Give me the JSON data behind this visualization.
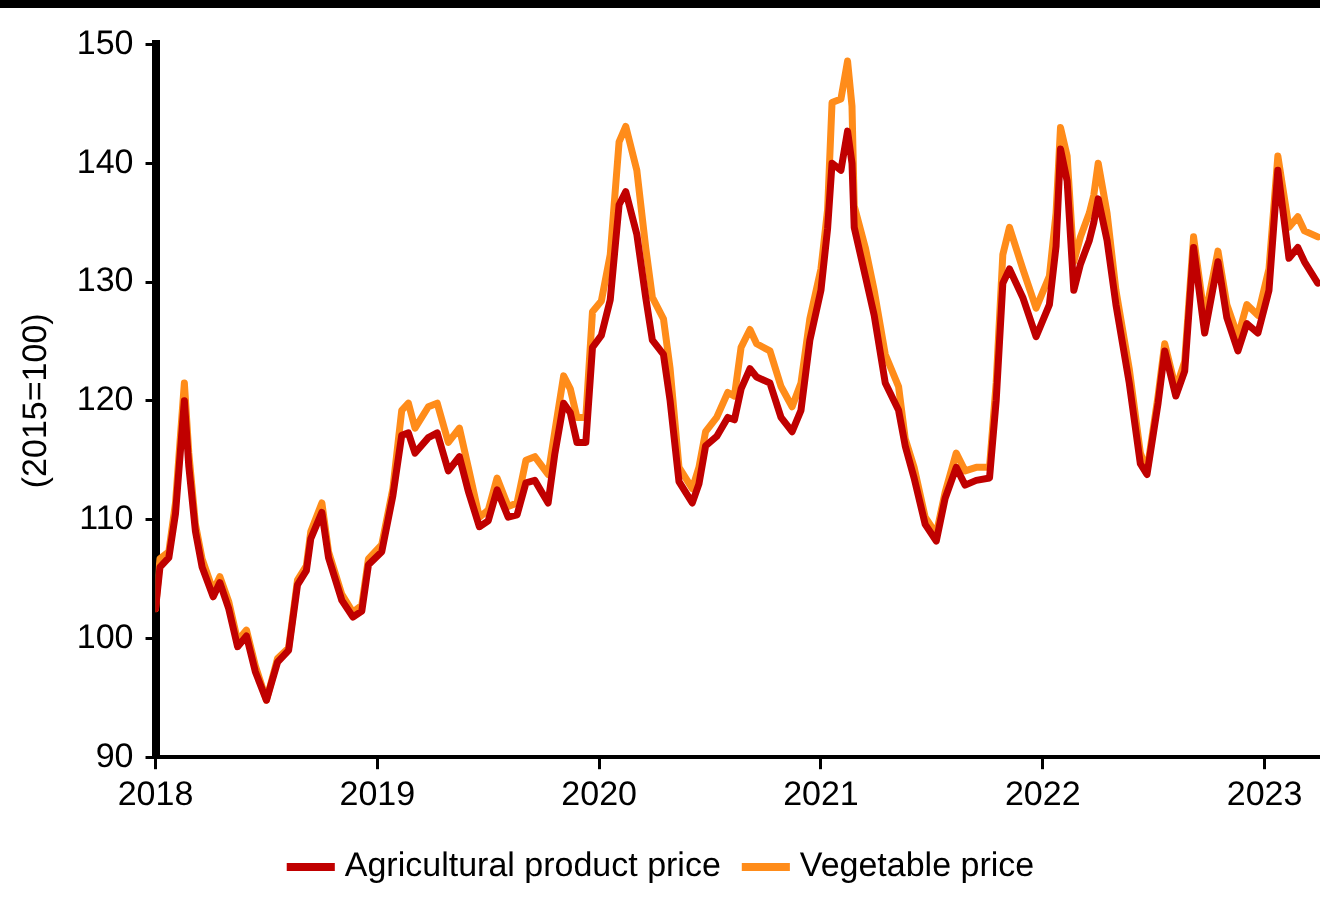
{
  "chart_data": {
    "type": "line",
    "ylabel": "(2015=100)",
    "x": [
      2018.0,
      2018.02,
      2018.06,
      2018.09,
      2018.13,
      2018.15,
      2018.18,
      2018.21,
      2018.26,
      2018.29,
      2018.33,
      2018.37,
      2018.41,
      2018.45,
      2018.5,
      2018.55,
      2018.6,
      2018.64,
      2018.68,
      2018.7,
      2018.75,
      2018.78,
      2018.84,
      2018.89,
      2018.93,
      2018.96,
      2019.02,
      2019.07,
      2019.11,
      2019.14,
      2019.17,
      2019.23,
      2019.27,
      2019.32,
      2019.37,
      2019.41,
      2019.46,
      2019.5,
      2019.54,
      2019.59,
      2019.63,
      2019.67,
      2019.71,
      2019.77,
      2019.8,
      2019.84,
      2019.87,
      2019.9,
      2019.94,
      2019.97,
      2020.01,
      2020.05,
      2020.09,
      2020.12,
      2020.17,
      2020.21,
      2020.24,
      2020.29,
      2020.32,
      2020.36,
      2020.42,
      2020.45,
      2020.48,
      2020.53,
      2020.58,
      2020.61,
      2020.64,
      2020.68,
      2020.71,
      2020.77,
      2020.82,
      2020.87,
      2020.91,
      2020.95,
      2021.0,
      2021.03,
      2021.05,
      2021.09,
      2021.12,
      2021.14,
      2021.15,
      2021.2,
      2021.24,
      2021.29,
      2021.35,
      2021.38,
      2021.42,
      2021.47,
      2021.52,
      2021.56,
      2021.61,
      2021.65,
      2021.7,
      2021.76,
      2021.79,
      2021.82,
      2021.85,
      2021.91,
      2021.97,
      2022.03,
      2022.06,
      2022.08,
      2022.11,
      2022.14,
      2022.17,
      2022.21,
      2022.23,
      2022.25,
      2022.29,
      2022.33,
      2022.39,
      2022.44,
      2022.47,
      2022.52,
      2022.55,
      2022.6,
      2022.64,
      2022.68,
      2022.73,
      2022.79,
      2022.83,
      2022.88,
      2022.92,
      2022.97,
      2023.02,
      2023.06,
      2023.11,
      2023.15,
      2023.18,
      2023.24
    ],
    "series": [
      {
        "name": "Agricultural product price",
        "color": "#c00000",
        "values": [
          102.5,
          106,
          106.8,
          110.5,
          120,
          114.5,
          109,
          106,
          103.5,
          104.7,
          102.5,
          99.3,
          100.2,
          97.2,
          94.8,
          98,
          99,
          104.5,
          105.7,
          108.4,
          110.6,
          106.8,
          103.2,
          101.8,
          102.3,
          106.2,
          107.3,
          112,
          117.1,
          117.3,
          115.6,
          116.9,
          117.3,
          114.1,
          115.3,
          112.4,
          109.4,
          109.9,
          112.5,
          110.2,
          110.4,
          113.1,
          113.3,
          111.4,
          115.5,
          119.8,
          119,
          116.5,
          116.5,
          124.5,
          125.5,
          128.5,
          136.5,
          137.6,
          134,
          128.7,
          125.1,
          123.9,
          120,
          113.2,
          111.4,
          113,
          116.2,
          117,
          118.6,
          118.4,
          121,
          122.7,
          122,
          121.5,
          118.6,
          117.4,
          119.2,
          125.1,
          129.3,
          134.5,
          140,
          139.4,
          142.7,
          140,
          134.6,
          130.5,
          127.2,
          121.5,
          119.2,
          116.2,
          113.5,
          109.6,
          108.2,
          111.8,
          114.4,
          112.9,
          113.3,
          113.5,
          120,
          129.9,
          131.1,
          128.7,
          125.4,
          128.1,
          133,
          141.2,
          138.5,
          129.3,
          131.5,
          133.5,
          135,
          137,
          133.5,
          128.1,
          121.5,
          114.7,
          113.8,
          119.8,
          124.2,
          120.4,
          122.5,
          132.9,
          125.7,
          131.7,
          127,
          124.2,
          126.5,
          125.7,
          129.3,
          139.4,
          132,
          132.9,
          131.7,
          129.9
        ]
      },
      {
        "name": "Vegetable price",
        "color": "#ff8c1a",
        "values": [
          102.5,
          106.7,
          107.3,
          111.4,
          121.5,
          115.6,
          109.6,
          106.7,
          104,
          105.2,
          103.1,
          99.8,
          100.7,
          97.7,
          94.8,
          98.3,
          99.2,
          104.9,
          106.1,
          109,
          111.4,
          107.3,
          103.7,
          102.2,
          102.8,
          106.7,
          107.9,
          112.6,
          119.2,
          119.8,
          117.7,
          119.5,
          119.8,
          116.5,
          117.7,
          114.4,
          110.2,
          110.8,
          113.5,
          111.1,
          111.4,
          115,
          115.3,
          113.8,
          117.4,
          122.1,
          121,
          118.6,
          118.6,
          127.5,
          128.4,
          132.3,
          141.8,
          143.1,
          139.4,
          132.9,
          128.7,
          126.9,
          122.7,
          114.4,
          112.6,
          114.4,
          117.4,
          118.6,
          120.7,
          120.4,
          124.5,
          126,
          124.8,
          124.2,
          121.2,
          119.5,
          121.5,
          126.9,
          131.1,
          136.1,
          145.1,
          145.4,
          148.6,
          144.8,
          136.4,
          132.9,
          129.3,
          123.9,
          121.2,
          116.8,
          114.4,
          110.2,
          108.8,
          112.3,
          115.6,
          114.1,
          114.4,
          114.4,
          121.5,
          132.3,
          134.6,
          131.1,
          127.8,
          130.5,
          135.8,
          143,
          140.6,
          131.7,
          133.8,
          135.8,
          137.3,
          140,
          135.8,
          129.3,
          122.7,
          115.6,
          114.1,
          120.4,
          124.8,
          121,
          123.3,
          133.8,
          126.9,
          132.6,
          128.1,
          125.4,
          128.1,
          127.2,
          131.1,
          140.6,
          134.6,
          135.5,
          134.3,
          133.8
        ]
      }
    ],
    "xlim": [
      2018,
      2023.25
    ],
    "xticks": [
      2018,
      2019,
      2020,
      2021,
      2022,
      2023
    ],
    "ylim": [
      90,
      150
    ],
    "yticks": [
      90,
      100,
      110,
      120,
      130,
      140,
      150
    ],
    "grid": false,
    "legend": "bottom",
    "marker": "none",
    "line_style": "solid"
  }
}
